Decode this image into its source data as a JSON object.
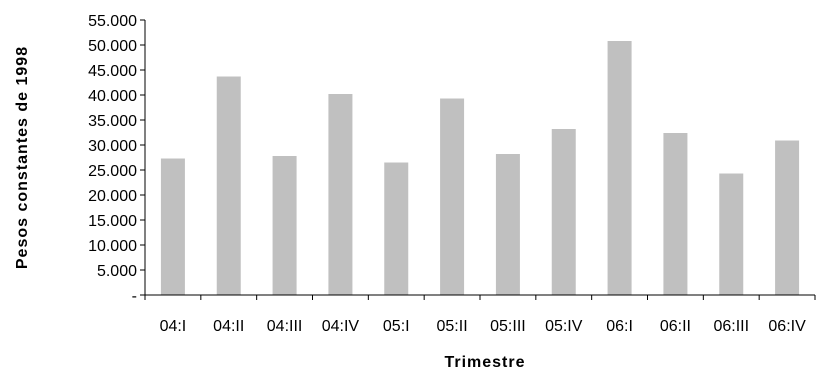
{
  "chart_data": {
    "type": "bar",
    "title": "",
    "xlabel": "Trimestre",
    "ylabel": "Pesos constantes de 1998",
    "categories": [
      "04:I",
      "04:II",
      "04:III",
      "04:IV",
      "05:I",
      "05:II",
      "05:III",
      "05:IV",
      "06:I",
      "06:II",
      "06:III",
      "06:IV"
    ],
    "values": [
      27300,
      43700,
      27800,
      40200,
      26500,
      39300,
      28200,
      33200,
      50800,
      32400,
      24300,
      30900
    ],
    "ylim": [
      0,
      55000
    ],
    "yticks": [
      0,
      5000,
      10000,
      15000,
      20000,
      25000,
      30000,
      35000,
      40000,
      45000,
      50000,
      55000
    ],
    "ytick_labels": [
      "-",
      "5.000",
      "10.000",
      "15.000",
      "20.000",
      "25.000",
      "30.000",
      "35.000",
      "40.000",
      "45.000",
      "50.000",
      "55.000"
    ],
    "grid": false,
    "legend": "none",
    "bar_color": "#c0c0c0"
  }
}
